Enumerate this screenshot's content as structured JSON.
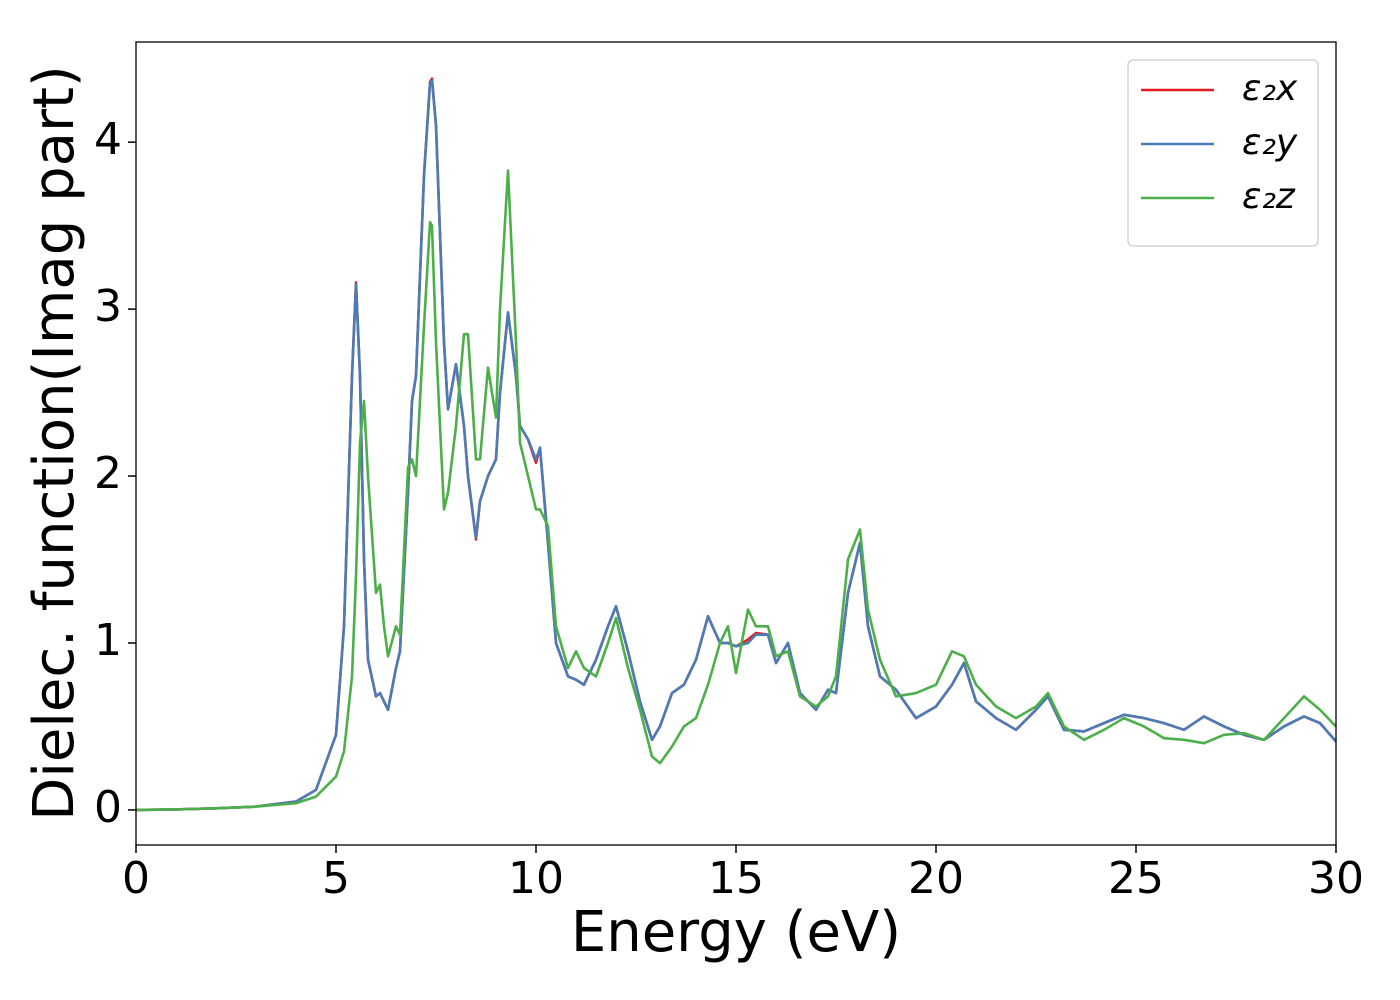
{
  "chart_data": {
    "type": "line",
    "xlabel": "Energy (eV)",
    "ylabel": "Dielec. function(Imag part)",
    "x": [
      0,
      1,
      2,
      3,
      4,
      4.5,
      5,
      5.2,
      5.4,
      5.5,
      5.6,
      5.7,
      5.8,
      6.0,
      6.1,
      6.2,
      6.3,
      6.5,
      6.6,
      6.8,
      6.9,
      7.0,
      7.2,
      7.35,
      7.4,
      7.5,
      7.7,
      7.8,
      8.0,
      8.2,
      8.3,
      8.5,
      8.6,
      8.8,
      9.0,
      9.1,
      9.3,
      9.5,
      9.6,
      9.8,
      10.0,
      10.1,
      10.3,
      10.5,
      10.8,
      11.0,
      11.2,
      11.5,
      11.8,
      12.0,
      12.3,
      12.6,
      12.9,
      13.1,
      13.4,
      13.7,
      14.0,
      14.3,
      14.6,
      14.8,
      15.0,
      15.3,
      15.5,
      15.8,
      16.0,
      16.3,
      16.6,
      17.0,
      17.3,
      17.5,
      17.8,
      18.1,
      18.3,
      18.6,
      19.0,
      19.5,
      20.0,
      20.4,
      20.7,
      21.0,
      21.5,
      22.0,
      22.5,
      22.8,
      23.2,
      23.7,
      24.2,
      24.7,
      25.2,
      25.7,
      26.2,
      26.7,
      27.2,
      27.7,
      28.2,
      28.7,
      29.2,
      29.6,
      30
    ],
    "series": [
      {
        "name": "ε₂x",
        "color": "#e41a1c",
        "values": [
          0,
          0.003,
          0.01,
          0.02,
          0.05,
          0.12,
          0.45,
          1.1,
          2.6,
          3.16,
          2.6,
          1.5,
          0.9,
          0.68,
          0.7,
          0.65,
          0.6,
          0.85,
          0.95,
          1.9,
          2.45,
          2.6,
          3.8,
          4.36,
          4.38,
          4.1,
          2.8,
          2.4,
          2.67,
          2.3,
          2.0,
          1.62,
          1.85,
          2.0,
          2.1,
          2.5,
          2.98,
          2.6,
          2.3,
          2.22,
          2.08,
          2.17,
          1.6,
          1.0,
          0.8,
          0.78,
          0.75,
          0.9,
          1.1,
          1.22,
          0.95,
          0.65,
          0.42,
          0.5,
          0.7,
          0.75,
          0.9,
          1.16,
          1.0,
          1.0,
          0.98,
          1.02,
          1.06,
          1.05,
          0.88,
          1.0,
          0.7,
          0.6,
          0.72,
          0.7,
          1.3,
          1.6,
          1.1,
          0.8,
          0.72,
          0.55,
          0.62,
          0.75,
          0.88,
          0.65,
          0.55,
          0.48,
          0.6,
          0.68,
          0.48,
          0.47,
          0.52,
          0.57,
          0.55,
          0.52,
          0.48,
          0.56,
          0.5,
          0.45,
          0.42,
          0.5,
          0.56,
          0.52,
          0.41
        ]
      },
      {
        "name": "ε₂y",
        "color": "#4a7db5",
        "values": [
          0,
          0.003,
          0.01,
          0.02,
          0.05,
          0.12,
          0.45,
          1.1,
          2.6,
          3.15,
          2.6,
          1.5,
          0.9,
          0.68,
          0.7,
          0.65,
          0.6,
          0.85,
          0.95,
          1.9,
          2.45,
          2.6,
          3.8,
          4.35,
          4.37,
          4.1,
          2.8,
          2.4,
          2.67,
          2.3,
          2.0,
          1.63,
          1.85,
          2.0,
          2.1,
          2.5,
          2.98,
          2.6,
          2.3,
          2.22,
          2.1,
          2.17,
          1.6,
          1.0,
          0.8,
          0.78,
          0.75,
          0.9,
          1.1,
          1.22,
          0.95,
          0.65,
          0.42,
          0.5,
          0.7,
          0.75,
          0.9,
          1.16,
          1.0,
          1.0,
          0.98,
          1.0,
          1.05,
          1.05,
          0.88,
          1.0,
          0.7,
          0.6,
          0.72,
          0.7,
          1.3,
          1.6,
          1.1,
          0.8,
          0.72,
          0.55,
          0.62,
          0.75,
          0.88,
          0.65,
          0.55,
          0.48,
          0.6,
          0.68,
          0.48,
          0.47,
          0.52,
          0.57,
          0.55,
          0.52,
          0.48,
          0.56,
          0.5,
          0.45,
          0.42,
          0.5,
          0.56,
          0.52,
          0.41
        ]
      },
      {
        "name": "ε₂z",
        "color": "#4daf4a",
        "values": [
          0,
          0.003,
          0.01,
          0.02,
          0.04,
          0.08,
          0.2,
          0.35,
          0.8,
          1.4,
          2.2,
          2.45,
          2.0,
          1.3,
          1.35,
          1.1,
          0.92,
          1.1,
          1.05,
          2.05,
          2.1,
          2.0,
          2.9,
          3.52,
          3.5,
          2.8,
          1.8,
          1.9,
          2.3,
          2.85,
          2.85,
          2.1,
          2.1,
          2.65,
          2.35,
          3.0,
          3.83,
          2.8,
          2.2,
          2.0,
          1.8,
          1.8,
          1.7,
          1.1,
          0.85,
          0.95,
          0.85,
          0.8,
          1.0,
          1.15,
          0.85,
          0.6,
          0.32,
          0.28,
          0.38,
          0.5,
          0.55,
          0.75,
          1.0,
          1.1,
          0.82,
          1.2,
          1.1,
          1.1,
          0.92,
          0.95,
          0.68,
          0.62,
          0.68,
          0.8,
          1.5,
          1.68,
          1.2,
          0.9,
          0.68,
          0.7,
          0.75,
          0.95,
          0.92,
          0.75,
          0.62,
          0.55,
          0.62,
          0.7,
          0.5,
          0.42,
          0.48,
          0.55,
          0.5,
          0.43,
          0.42,
          0.4,
          0.45,
          0.46,
          0.42,
          0.55,
          0.68,
          0.6,
          0.5
        ]
      }
    ],
    "xlim": [
      0,
      30
    ],
    "xticks": [
      0,
      5,
      10,
      15,
      20,
      25,
      30
    ],
    "ylim": [
      -0.21,
      4.6
    ],
    "yticks": [
      0,
      1,
      2,
      3,
      4
    ],
    "grid": false,
    "legend": "upper right"
  }
}
